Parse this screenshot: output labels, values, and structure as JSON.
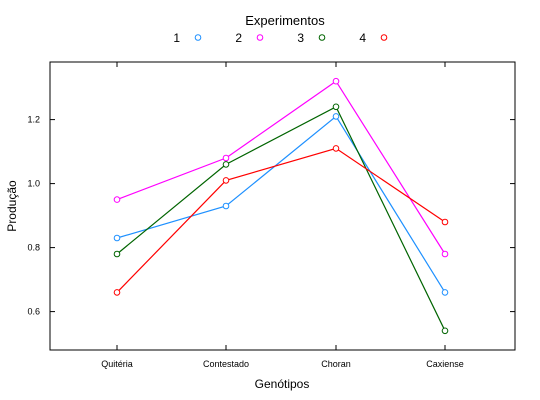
{
  "chart_data": {
    "type": "line",
    "title": "",
    "xlabel": "Genótipos",
    "ylabel": "Produção",
    "categories": [
      "Quitéria",
      "Contestado",
      "Choran",
      "Caxiense"
    ],
    "ylim": [
      0.48,
      1.38
    ],
    "yticks": [
      "0.6",
      "0.8",
      "1.0",
      "1.2"
    ],
    "legend": {
      "title": "Experimentos",
      "placement": "top"
    },
    "grid": false,
    "series": [
      {
        "name": "1",
        "color": "#1e90ff",
        "values": [
          0.83,
          0.93,
          1.21,
          0.66
        ]
      },
      {
        "name": "2",
        "color": "#ff00ff",
        "values": [
          0.95,
          1.08,
          1.32,
          0.78
        ]
      },
      {
        "name": "3",
        "color": "#006400",
        "values": [
          0.78,
          1.06,
          1.24,
          0.54
        ]
      },
      {
        "name": "4",
        "color": "#ff0000",
        "values": [
          0.66,
          1.01,
          1.11,
          0.88
        ]
      }
    ]
  }
}
